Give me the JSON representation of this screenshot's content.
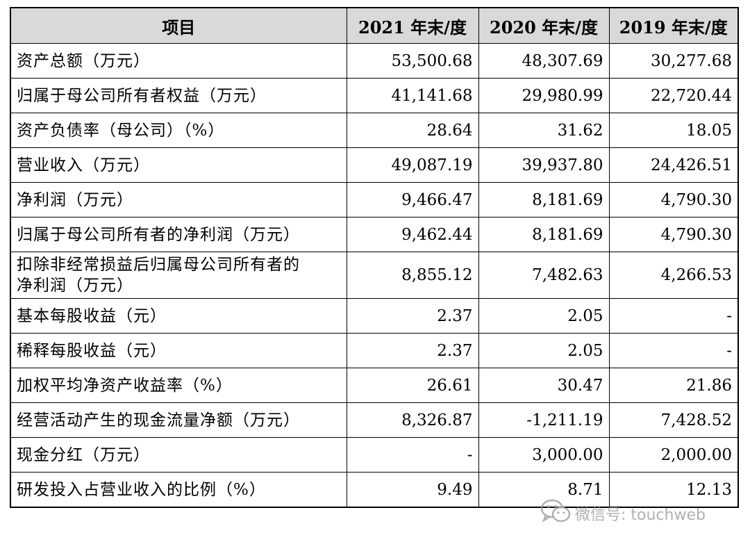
{
  "table": {
    "headers": [
      "项目",
      "2021 年末/度",
      "2020 年末/度",
      "2019 年末/度"
    ],
    "rows": [
      {
        "label": "资产总额（万元）",
        "values": [
          "53,500.68",
          "48,307.69",
          "30,277.68"
        ]
      },
      {
        "label": "归属于母公司所有者权益（万元）",
        "values": [
          "41,141.68",
          "29,980.99",
          "22,720.44"
        ]
      },
      {
        "label": "资产负债率（母公司）（%）",
        "values": [
          "28.64",
          "31.62",
          "18.05"
        ]
      },
      {
        "label": "营业收入（万元）",
        "values": [
          "49,087.19",
          "39,937.80",
          "24,426.51"
        ]
      },
      {
        "label": "净利润（万元）",
        "values": [
          "9,466.47",
          "8,181.69",
          "4,790.30"
        ]
      },
      {
        "label": "归属于母公司所有者的净利润（万元）",
        "values": [
          "9,462.44",
          "8,181.69",
          "4,790.30"
        ]
      },
      {
        "label_lines": [
          "扣除非经常损益后归属母公司所有者的",
          "净利润（万元）"
        ],
        "values": [
          "8,855.12",
          "7,482.63",
          "4,266.53"
        ]
      },
      {
        "label": "基本每股收益（元）",
        "values": [
          "2.37",
          "2.05",
          "-"
        ]
      },
      {
        "label": "稀释每股收益（元）",
        "values": [
          "2.37",
          "2.05",
          "-"
        ]
      },
      {
        "label": "加权平均净资产收益率（%）",
        "values": [
          "26.61",
          "30.47",
          "21.86"
        ]
      },
      {
        "label": "经营活动产生的现金流量净额（万元）",
        "values": [
          "8,326.87",
          "-1,211.19",
          "7,428.52"
        ]
      },
      {
        "label": "现金分红（万元）",
        "values": [
          "-",
          "3,000.00",
          "2,000.00"
        ]
      },
      {
        "label": "研发投入占营业收入的比例（%）",
        "values": [
          "9.49",
          "8.71",
          "12.13"
        ]
      }
    ]
  },
  "watermark": {
    "icon": "wechat-icon",
    "text": "微信号: touchweb"
  }
}
